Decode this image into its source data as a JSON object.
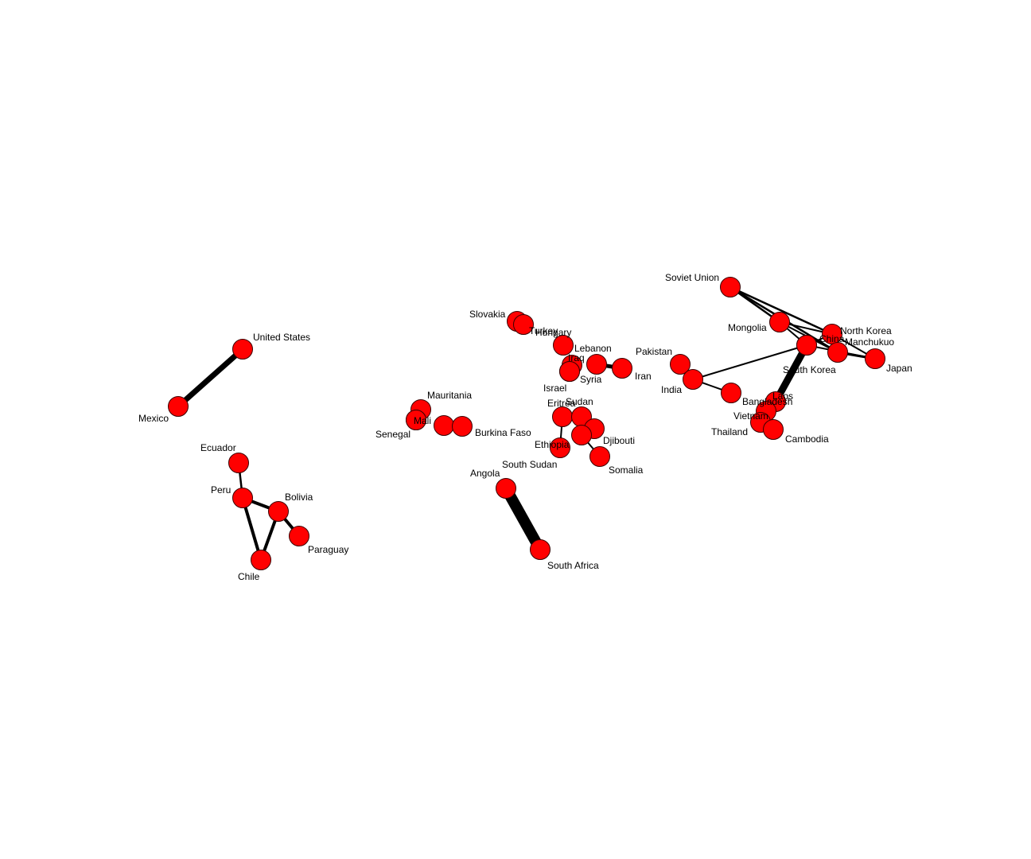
{
  "colors": {
    "node_fill": "#ff0000",
    "node_stroke": "#3a0000",
    "edge": "#000000",
    "label": "#000000",
    "background": "#ffffff"
  },
  "nodes": [
    {
      "id": "united_states",
      "label": "United States"
    },
    {
      "id": "mexico",
      "label": "Mexico"
    },
    {
      "id": "ecuador",
      "label": "Ecuador"
    },
    {
      "id": "peru",
      "label": "Peru"
    },
    {
      "id": "bolivia",
      "label": "Bolivia"
    },
    {
      "id": "paraguay",
      "label": "Paraguay"
    },
    {
      "id": "chile",
      "label": "Chile"
    },
    {
      "id": "mauritania",
      "label": "Mauritania"
    },
    {
      "id": "mali",
      "label": "Mali"
    },
    {
      "id": "senegal",
      "label": "Senegal"
    },
    {
      "id": "burkina_faso_a",
      "label": ""
    },
    {
      "id": "burkina_faso",
      "label": "Burkina Faso"
    },
    {
      "id": "slovakia",
      "label": "Slovakia"
    },
    {
      "id": "turkey",
      "label": "Turkey"
    },
    {
      "id": "hungary",
      "label": "Hungary"
    },
    {
      "id": "iraq",
      "label": "Iraq"
    },
    {
      "id": "syria",
      "label": "Syria"
    },
    {
      "id": "israel",
      "label": "Israel"
    },
    {
      "id": "lebanon",
      "label": "Lebanon"
    },
    {
      "id": "iran",
      "label": "Iran"
    },
    {
      "id": "eritrea",
      "label": "Eritrea"
    },
    {
      "id": "sudan",
      "label": "Sudan"
    },
    {
      "id": "south_sudan",
      "label": "South Sudan"
    },
    {
      "id": "ethiopia",
      "label": "Ethiopia"
    },
    {
      "id": "djibouti",
      "label": "Djibouti"
    },
    {
      "id": "somalia",
      "label": "Somalia"
    },
    {
      "id": "angola",
      "label": "Angola"
    },
    {
      "id": "south_africa",
      "label": "South Africa"
    },
    {
      "id": "soviet_union",
      "label": "Soviet Union"
    },
    {
      "id": "mongolia",
      "label": "Mongolia"
    },
    {
      "id": "china",
      "label": "China"
    },
    {
      "id": "north_korea",
      "label": "North Korea"
    },
    {
      "id": "manchukuo",
      "label": "Manchukuo"
    },
    {
      "id": "japan",
      "label": "Japan"
    },
    {
      "id": "south_korea",
      "label": "South Korea"
    },
    {
      "id": "pakistan",
      "label": "Pakistan"
    },
    {
      "id": "india",
      "label": "India"
    },
    {
      "id": "bangladesh",
      "label": "Bangladesh"
    },
    {
      "id": "laos",
      "label": "Laos"
    },
    {
      "id": "vietnam",
      "label": "Vietnam"
    },
    {
      "id": "thailand",
      "label": "Thailand"
    },
    {
      "id": "cambodia",
      "label": "Cambodia"
    }
  ],
  "edges": [
    {
      "source": "united_states",
      "target": "mexico",
      "weight": 7
    },
    {
      "source": "ecuador",
      "target": "peru",
      "weight": 2.5
    },
    {
      "source": "peru",
      "target": "bolivia",
      "weight": 4
    },
    {
      "source": "peru",
      "target": "chile",
      "weight": 4
    },
    {
      "source": "bolivia",
      "target": "chile",
      "weight": 4
    },
    {
      "source": "bolivia",
      "target": "paraguay",
      "weight": 4
    },
    {
      "source": "mauritania",
      "target": "mali",
      "weight": 1
    },
    {
      "source": "mali",
      "target": "senegal",
      "weight": 1
    },
    {
      "source": "angola",
      "target": "south_africa",
      "weight": 14
    },
    {
      "source": "lebanon",
      "target": "iran",
      "weight": 5
    },
    {
      "source": "iraq",
      "target": "syria",
      "weight": 1
    },
    {
      "source": "eritrea",
      "target": "ethiopia",
      "weight": 2
    },
    {
      "source": "djibouti",
      "target": "somalia",
      "weight": 2
    },
    {
      "source": "soviet_union",
      "target": "mongolia",
      "weight": 2.5
    },
    {
      "source": "soviet_union",
      "target": "north_korea",
      "weight": 2.5
    },
    {
      "source": "soviet_union",
      "target": "manchukuo",
      "weight": 2.5
    },
    {
      "source": "mongolia",
      "target": "china",
      "weight": 2
    },
    {
      "source": "mongolia",
      "target": "north_korea",
      "weight": 2
    },
    {
      "source": "mongolia",
      "target": "manchukuo",
      "weight": 2
    },
    {
      "source": "china",
      "target": "north_korea",
      "weight": 2
    },
    {
      "source": "china",
      "target": "japan",
      "weight": 2
    },
    {
      "source": "north_korea",
      "target": "japan",
      "weight": 2
    },
    {
      "source": "manchukuo",
      "target": "japan",
      "weight": 3
    },
    {
      "source": "china",
      "target": "india",
      "weight": 2
    },
    {
      "source": "china",
      "target": "laos",
      "weight": 9
    },
    {
      "source": "pakistan",
      "target": "india",
      "weight": 1
    },
    {
      "source": "india",
      "target": "bangladesh",
      "weight": 2
    }
  ]
}
